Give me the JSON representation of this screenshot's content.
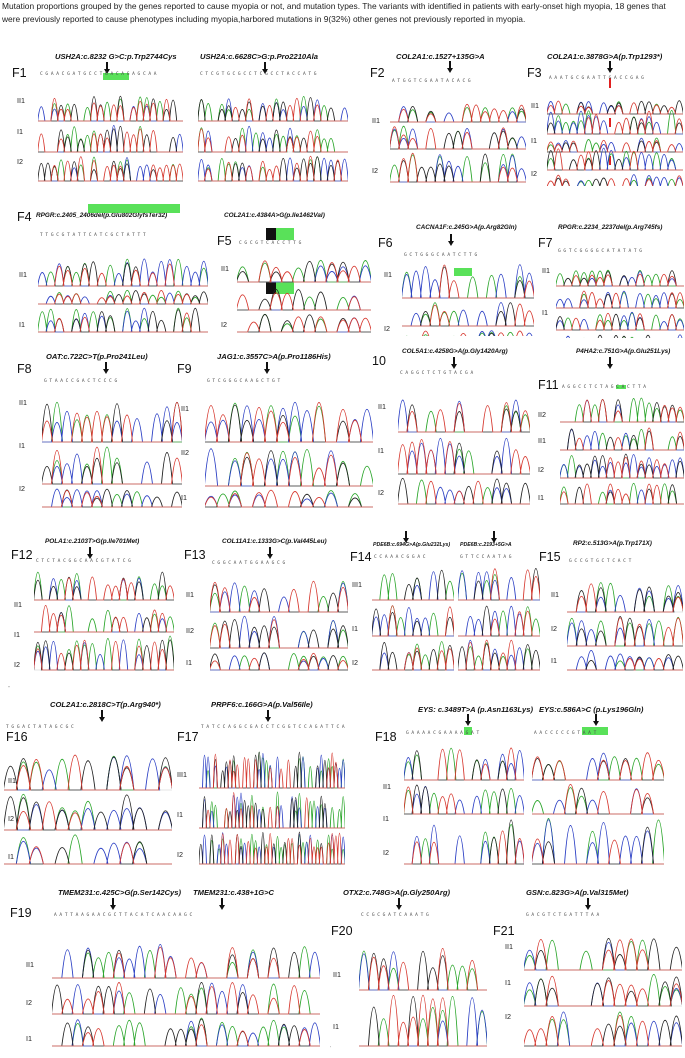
{
  "caption": "Mutation proportions grouped by the genes reported to cause myopia or not, and mutation types. The variants with identified in patients with early-onset high myopia, 18 genes that were previously reported to cause phenotypes including myopia,harbored mutations in 9(32%) other genes not previously reported in myopia.",
  "panels": {
    "F1": {
      "id": "F1",
      "mut_a": "USH2A:c.8232 G>C:p.Trp2744Cys",
      "mut_b": "USH2A:c.6628C>G:p.Pro2210Ala",
      "rows": [
        "II1",
        "I1",
        "I2"
      ]
    },
    "F2": {
      "id": "F2",
      "mut": "COL2A1:c.1527+135G>A",
      "rows": [
        "II1",
        "I2"
      ]
    },
    "F3": {
      "id": "F3",
      "mut": "COL2A1:c.3878G>A(p.Trp1293*)",
      "rows": [
        "II1",
        "I1",
        "I2"
      ]
    },
    "F4": {
      "id": "F4",
      "mut": "RPGR:c.2405_2406del(p.Glu802GlyfsTer32)",
      "rows": [
        "II1",
        "I1"
      ]
    },
    "F5": {
      "id": "F5",
      "mut": "COL2A1:c.4384A>G(p.Ile1462Val)",
      "rows": [
        "II1",
        "I2"
      ]
    },
    "F6": {
      "id": "F6",
      "mut": "CACNA1F:c.245G>A(p.Arg82Gln)",
      "rows": [
        "II1",
        "I2"
      ]
    },
    "F7": {
      "id": "F7",
      "mut": "RPGR:c.2234_2237del(p.Arg745fs)",
      "rows": [
        "II1",
        "I1",
        "I2"
      ]
    },
    "F8": {
      "id": "F8",
      "mut": "OAT:c.722C>T(p.Pro241Leu)",
      "rows": [
        "II1",
        "I1",
        "I2"
      ]
    },
    "F9": {
      "id": "F9",
      "mut": "JAG1:c.3557C>A(p.Pro1186His)",
      "rows": [
        "II1",
        "II2",
        "I1"
      ]
    },
    "F10": {
      "id": "10",
      "mut": "COL5A1:c.4258G>A(p.Gly1420Arg)",
      "rows": [
        "II1",
        "I1",
        "I2"
      ]
    },
    "F11": {
      "id": "F11",
      "mut": "P4HA2:c.751G>A(p.Glu251Lys)",
      "rows": [
        "II2",
        "II1",
        "I2",
        "I1"
      ]
    },
    "F12": {
      "id": "F12",
      "mut": "POLA1:c.2103T>G(p.Ile701Met)",
      "rows": [
        "II1",
        "I1",
        "I2"
      ]
    },
    "F13": {
      "id": "F13",
      "mut": "COL11A1:c.1333G>C(p.Val445Leu)",
      "rows": [
        "II1",
        "II2",
        "I1"
      ]
    },
    "F14": {
      "id": "F14",
      "mut_a": "PDE6B:c.694G>A(p.Glu232Lys)",
      "mut_b": "PDE6B:c.2193+5G>A",
      "rows": [
        "III1",
        "I1",
        "I2"
      ]
    },
    "F15": {
      "id": "F15",
      "mut": "RP2:c.513G>A(p.Trp171X)",
      "rows": [
        "II1",
        "I2",
        "I1"
      ]
    },
    "F16": {
      "id": "F16",
      "mut": "COL2A1:c.2818C>T(p.Arg940*)",
      "rows": [
        "II1",
        "I2",
        "I1"
      ]
    },
    "F17": {
      "id": "F17",
      "mut": "PRPF6:c.166G>A(p.Val56Ile)",
      "rows": [
        "III1",
        "I1",
        "I2"
      ]
    },
    "F18": {
      "id": "F18",
      "mut_a": "EYS: c.3489T>A (p.Asn1163Lys)",
      "mut_b": "EYS:c.586A>C (p.Lys196Gln)",
      "rows": [
        "II1",
        "I1",
        "I2"
      ]
    },
    "F19": {
      "id": "F19",
      "mut_a": "TMEM231:c.425C>G(p.Ser142Cys)",
      "mut_b": "TMEM231:c.438+1G>C",
      "rows": [
        "II1",
        "I2",
        "I1"
      ]
    },
    "F20": {
      "id": "F20",
      "mut": "OTX2:c.748G>A(p.Gly250Arg)",
      "rows": [
        "II1",
        "I1"
      ]
    },
    "F21": {
      "id": "F21",
      "mut": "GSN:c.823G>A(p.Val315Met)",
      "rows": [
        "II1",
        "I1",
        "I2"
      ]
    }
  },
  "stray_marks": {
    "quote_mark": "”",
    "tick_mark": "’"
  },
  "trace_colors": {
    "A": "#2aa52a",
    "C": "#2b3fc4",
    "G": "#222222",
    "T": "#d6382f"
  }
}
